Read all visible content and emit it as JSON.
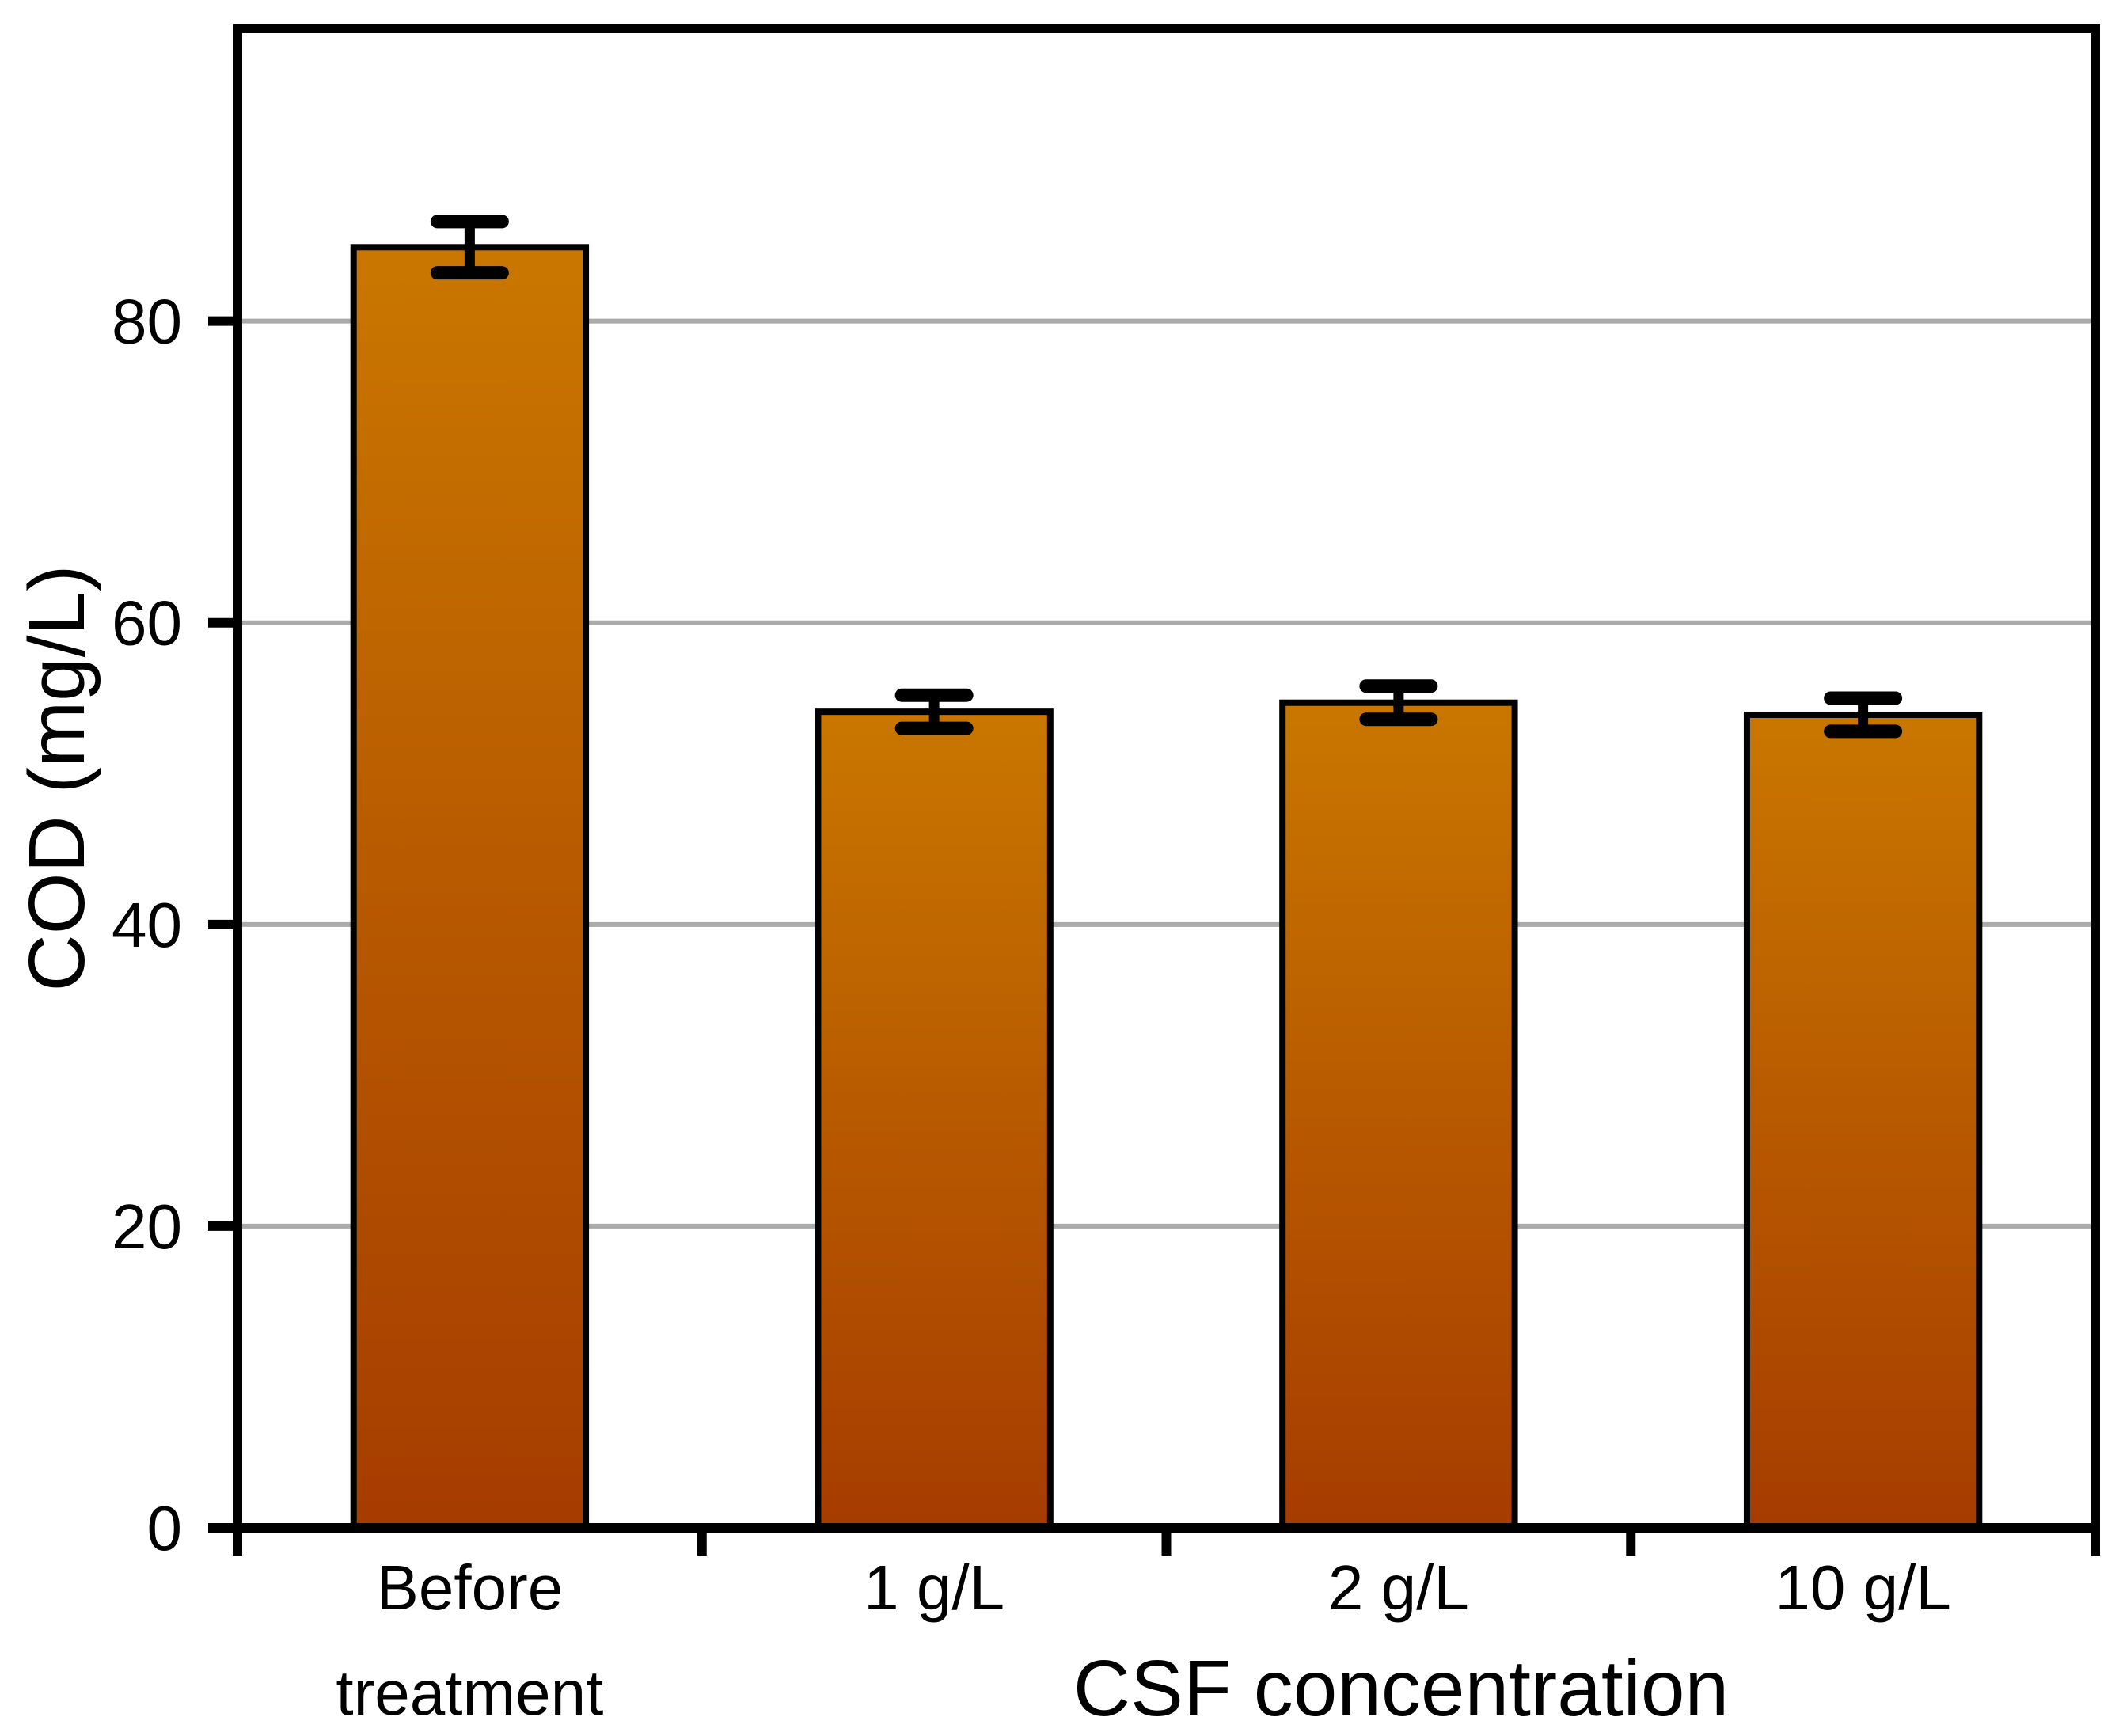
{
  "figure": {
    "background_color": "#FFFFFF"
  },
  "chart_data": {
    "type": "bar",
    "title": "",
    "categories": [
      "Before\ntreatment",
      "1 g/L",
      "2 g/L",
      "10 g/L"
    ],
    "values": [
      84.9,
      54.1,
      54.7,
      53.9
    ],
    "errors": [
      1.7,
      1.1,
      1.1,
      1.1
    ],
    "xlabel": "CSF concentration",
    "ylabel": "COD (mg/L)",
    "yticks": [
      0,
      20,
      40,
      60,
      80
    ],
    "ylim": [
      0,
      99.4
    ],
    "bar_width_fraction": 0.5,
    "grid": "horizontal",
    "legend": "none",
    "colors": {
      "bar_gradient_top": "#C97700",
      "bar_gradient_bottom": "#A63C00",
      "bar_border": "#000000",
      "error_bar": "#000000",
      "gridline": "#AAAAAA",
      "axis": "#000000",
      "text": "#000000"
    }
  }
}
